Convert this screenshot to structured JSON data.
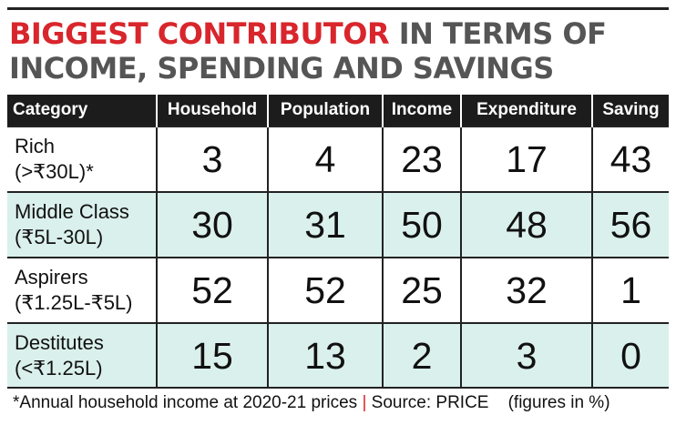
{
  "headline": {
    "red": "BIGGEST CONTRIBUTOR",
    "gray": "IN TERMS OF INCOME, SPENDING AND SAVINGS"
  },
  "colors": {
    "accent": "#d8262c",
    "header_bg": "#1c1c1c",
    "row_shade": "#daf0ec"
  },
  "chart_data": {
    "type": "table",
    "columns": [
      "Category",
      "Household",
      "Population",
      "Income",
      "Expenditure",
      "Saving"
    ],
    "rows": [
      {
        "name": "Rich",
        "range": "(>₹30L)*",
        "values": [
          3,
          4,
          23,
          17,
          43
        ]
      },
      {
        "name": "Middle Class",
        "range": "(₹5L-30L)",
        "values": [
          30,
          31,
          50,
          48,
          56
        ]
      },
      {
        "name": "Aspirers",
        "range": "(₹1.25L-₹5L)",
        "values": [
          52,
          52,
          25,
          32,
          1
        ]
      },
      {
        "name": "Destitutes",
        "range": "(<₹1.25L)",
        "values": [
          15,
          13,
          2,
          3,
          0
        ]
      }
    ]
  },
  "footnote": {
    "note": "*Annual household income at 2020-21 prices",
    "separator": "|",
    "source": "Source: PRICE",
    "units": "(figures in %)"
  }
}
